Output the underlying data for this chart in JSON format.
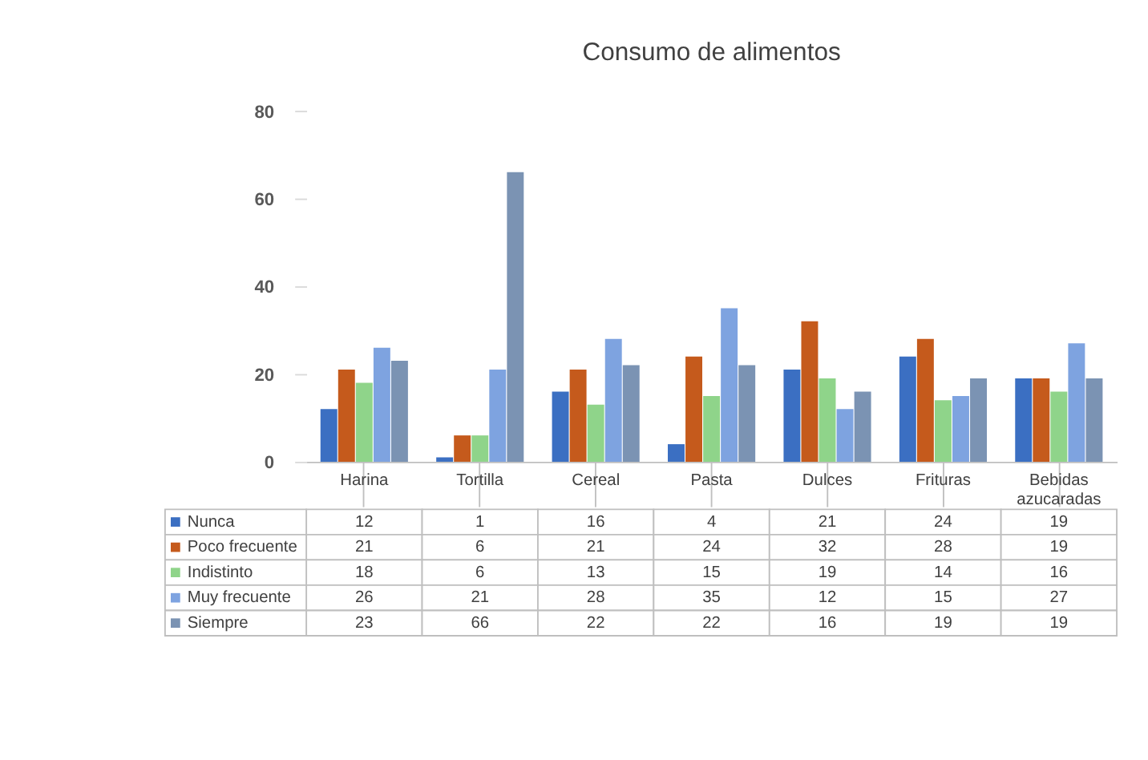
{
  "chart_data": {
    "type": "bar",
    "title": "Consumo de alimentos",
    "categories": [
      "Harina",
      "Tortilla",
      "Cereal",
      "Pasta",
      "Dulces",
      "Frituras",
      "Bebidas azucaradas"
    ],
    "series": [
      {
        "name": "Nunca",
        "color": "#3b6fc2",
        "values": [
          12,
          1,
          16,
          4,
          21,
          24,
          19
        ]
      },
      {
        "name": "Poco frecuente",
        "color": "#c55a1c",
        "values": [
          21,
          6,
          21,
          24,
          32,
          28,
          19
        ]
      },
      {
        "name": "Indistinto",
        "color": "#8fd48a",
        "values": [
          18,
          6,
          13,
          15,
          19,
          14,
          16
        ]
      },
      {
        "name": "Muy frecuente",
        "color": "#7ea3e0",
        "values": [
          26,
          21,
          28,
          35,
          12,
          15,
          27
        ]
      },
      {
        "name": "Siempre",
        "color": "#7b93b3",
        "values": [
          23,
          66,
          22,
          22,
          16,
          19,
          19
        ]
      }
    ],
    "ylim": [
      0,
      80
    ],
    "yticks": [
      0,
      20,
      40,
      60,
      80
    ],
    "grid": false,
    "legend": "bottom left",
    "data_labels": true
  }
}
